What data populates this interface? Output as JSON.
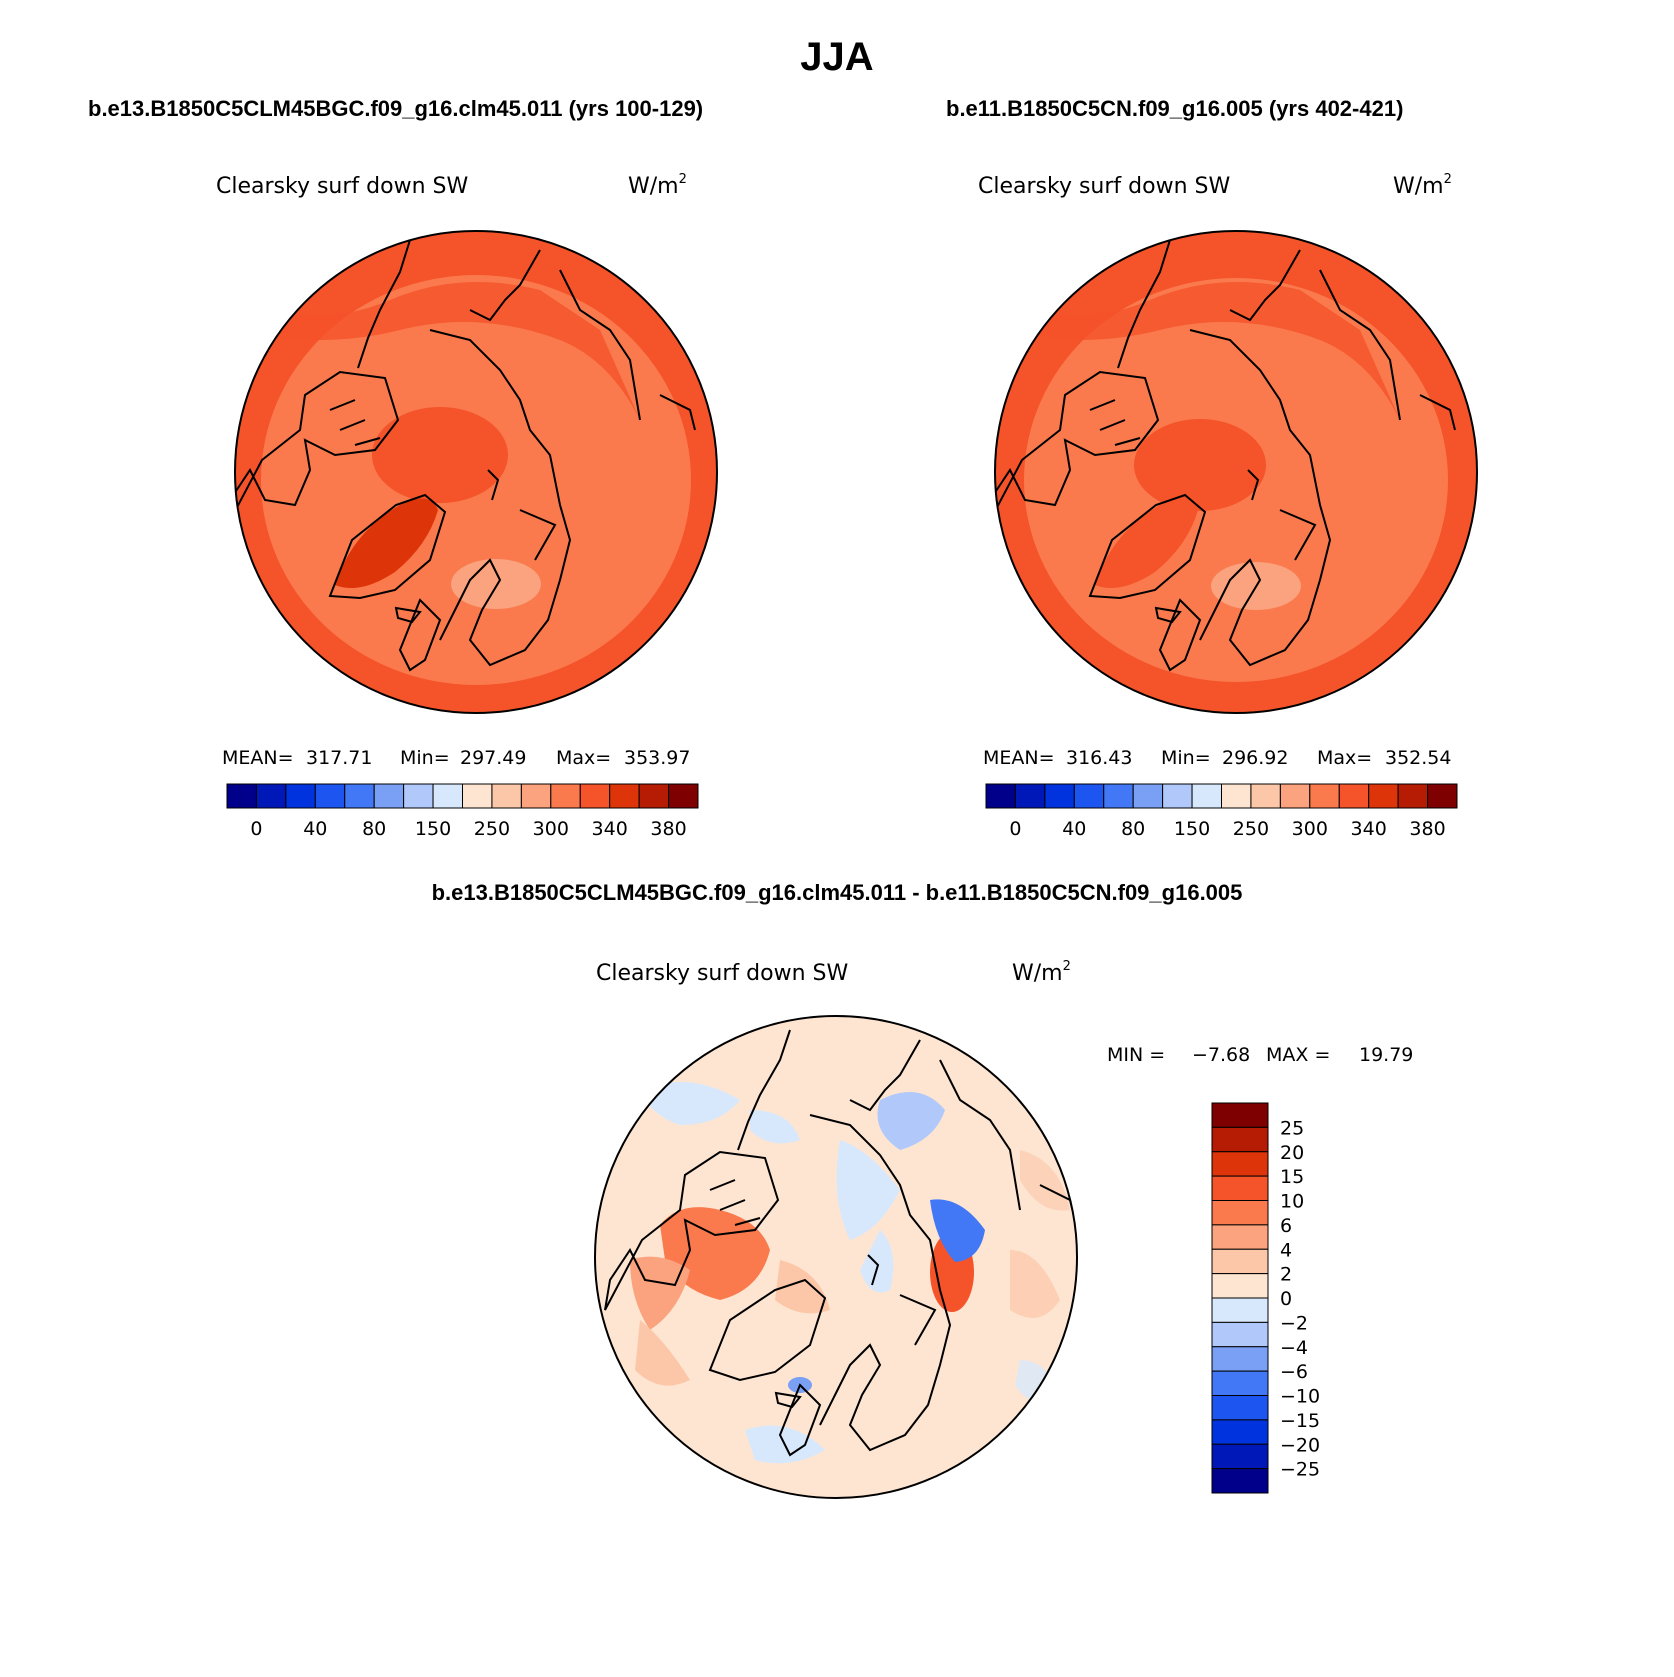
{
  "title": "JJA",
  "panels": [
    {
      "case_label": "b.e13.B1850C5CLM45BGC.f09_g16.clm45.011 (yrs 100-129)",
      "variable": "Clearsky surf down SW",
      "units": "W/m",
      "units_exp": "2",
      "stats": {
        "mean_label": "MEAN=",
        "mean": "317.71",
        "min_label": "Min=",
        "min": "297.49",
        "max_label": "Max=",
        "max": "353.97"
      }
    },
    {
      "case_label": "b.e11.B1850C5CN.f09_g16.005 (yrs 402-421)",
      "variable": "Clearsky surf down SW",
      "units": "W/m",
      "units_exp": "2",
      "stats": {
        "mean_label": "MEAN=",
        "mean": "316.43",
        "min_label": "Min=",
        "min": "296.92",
        "max_label": "Max=",
        "max": "352.54"
      }
    }
  ],
  "diff_panel": {
    "case_label": "b.e13.B1850C5CLM45BGC.f09_g16.clm45.011 - b.e11.B1850C5CN.f09_g16.005",
    "variable": "Clearsky surf down SW",
    "units": "W/m",
    "units_exp": "2",
    "minmax": {
      "min_label": "MIN =",
      "min": "−7.68",
      "max_label": "MAX =",
      "max": "19.79"
    }
  },
  "abs_colorbar": {
    "colors": [
      "#00008a",
      "#0018b8",
      "#0033dd",
      "#1d55f0",
      "#4278f5",
      "#7aa0f5",
      "#b0c8fa",
      "#d8e8fc",
      "#fde5d2",
      "#fcc7a8",
      "#fba27e",
      "#fa7a4e",
      "#f5532a",
      "#de3409",
      "#b51c03",
      "#7e0000"
    ],
    "tick_labels": [
      "0",
      "40",
      "80",
      "150",
      "250",
      "300",
      "340",
      "380"
    ]
  },
  "diff_colorbar": {
    "colors_top_to_bottom": [
      "#7e0000",
      "#b51c03",
      "#de3409",
      "#f5532a",
      "#fa7a4e",
      "#fba27e",
      "#fcc7a8",
      "#fde5d2",
      "#d8e8fc",
      "#b0c8fa",
      "#7aa0f5",
      "#4278f5",
      "#1d55f0",
      "#0033dd",
      "#0018b8",
      "#00008a"
    ],
    "tick_labels": [
      "25",
      "20",
      "15",
      "10",
      "6",
      "4",
      "2",
      "0",
      "−2",
      "−4",
      "−6",
      "−10",
      "−15",
      "−20",
      "−25"
    ]
  },
  "chart_data": [
    {
      "type": "heatmap",
      "title": "Clearsky surf down SW",
      "units": "W/m2",
      "projection": "north polar stereographic",
      "mean": 317.71,
      "min": 297.49,
      "max": 353.97,
      "levels": [
        0,
        20,
        40,
        60,
        80,
        100,
        150,
        200,
        250,
        275,
        300,
        320,
        340,
        360,
        380
      ]
    },
    {
      "type": "heatmap",
      "title": "Clearsky surf down SW",
      "units": "W/m2",
      "projection": "north polar stereographic",
      "mean": 316.43,
      "min": 296.92,
      "max": 352.54,
      "levels": [
        0,
        20,
        40,
        60,
        80,
        100,
        150,
        200,
        250,
        275,
        300,
        320,
        340,
        360,
        380
      ]
    },
    {
      "type": "heatmap",
      "title": "Clearsky surf down SW (difference)",
      "units": "W/m2",
      "projection": "north polar stereographic",
      "min": -7.68,
      "max": 19.79,
      "levels": [
        -25,
        -20,
        -15,
        -10,
        -6,
        -4,
        -2,
        0,
        2,
        4,
        6,
        10,
        15,
        20,
        25
      ]
    }
  ]
}
